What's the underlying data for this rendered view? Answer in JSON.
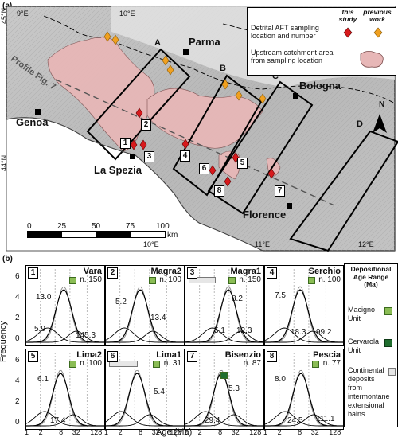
{
  "panel_a_label": "(a)",
  "panel_b_label": "(b)",
  "lon_labels": [
    "9°E",
    "10°E",
    "11°E",
    "12°E"
  ],
  "lat_labels": [
    "45°N",
    "44°N"
  ],
  "cities": [
    "Parma",
    "Bologna",
    "Genoa",
    "La Spezia",
    "Florence"
  ],
  "profiles": [
    "A",
    "B",
    "C",
    "D"
  ],
  "profile_label": "Profile Fig. 7",
  "north": "N",
  "scale": {
    "ticks": [
      "0",
      "25",
      "50",
      "75",
      "100"
    ],
    "unit": "km"
  },
  "site_numbers": [
    "1",
    "2",
    "3",
    "4",
    "5",
    "6",
    "7",
    "8"
  ],
  "legend_map": {
    "this_study": "this study",
    "previous_work": "previous work",
    "detrital": "Detrital AFT sampling location and number",
    "catchment": "Upstream catchment area from sampling location"
  },
  "y_axis_label": "Frequency",
  "y_ticks": [
    "6",
    "4",
    "2",
    "0"
  ],
  "x_axis_label": "Age (Ma)",
  "x_ticks": [
    "1",
    "2",
    "8",
    "32",
    "128"
  ],
  "panels": [
    {
      "idx": "1",
      "name": "Vara",
      "n": "n. 150",
      "peaks": [
        "13.0",
        "5.9",
        "145.3"
      ],
      "rect": false
    },
    {
      "idx": "2",
      "name": "Magra2",
      "n": "n. 100",
      "peaks": [
        "5.2",
        "13.4"
      ],
      "rect": false
    },
    {
      "idx": "3",
      "name": "Magra1",
      "n": "n. 150",
      "peaks": [
        "8.2",
        "5.1",
        "12.3"
      ],
      "rect": true
    },
    {
      "idx": "4",
      "name": "Serchio",
      "n": "n. 100",
      "peaks": [
        "7.5",
        "18.3",
        "99.2"
      ],
      "rect": false
    },
    {
      "idx": "5",
      "name": "Lima2",
      "n": "n. 100",
      "peaks": [
        "6.1",
        "17.4"
      ],
      "rect": false
    },
    {
      "idx": "6",
      "name": "Lima1",
      "n": "n. 31",
      "peaks": [
        "5.4"
      ],
      "rect": true
    },
    {
      "idx": "7",
      "name": "Bisenzio",
      "n": "n. 87",
      "peaks": [
        "5.3",
        "29.4"
      ],
      "rect": false
    },
    {
      "idx": "8",
      "name": "Pescia",
      "n": "n. 77",
      "peaks": [
        "8.0",
        "24.5",
        "111.1"
      ],
      "rect": false
    }
  ],
  "legend_b": {
    "title": "Depositional Age Range (Ma)",
    "items": [
      "Macigno Unit",
      "Cervarola Unit",
      "Continental deposits from intermontane extensional bains"
    ],
    "colors": [
      "#8bbd55",
      "#1f6e2e",
      "#e6e6e6"
    ]
  }
}
